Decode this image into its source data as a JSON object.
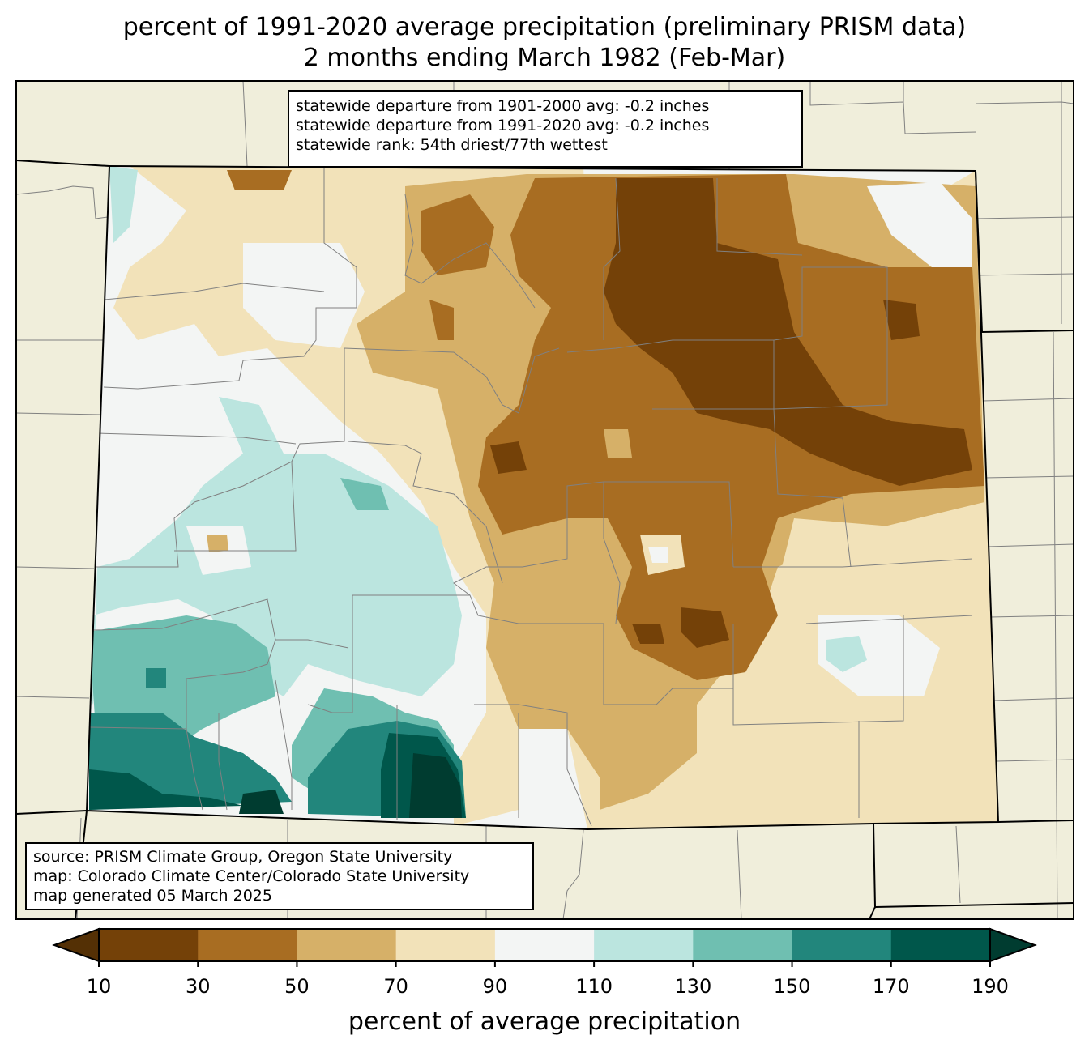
{
  "title": {
    "line1": "percent of 1991-2020 average precipitation (preliminary PRISM data)",
    "line2": "2 months ending March 1982 (Feb-Mar)"
  },
  "stats": {
    "line1": "statewide departure from 1901-2000 avg: -0.2 inches",
    "line2": "statewide departure from 1991-2020 avg: -0.2 inches",
    "line3": "statewide rank: 54th driest/77th wettest"
  },
  "source": {
    "line1": "source: PRISM Climate Group, Oregon State University",
    "line2": "map: Colorado Climate Center/Colorado State University",
    "line3": "map generated 05 March 2025"
  },
  "colorbar": {
    "label": "percent of average precipitation",
    "ticks": [
      "10",
      "30",
      "50",
      "70",
      "90",
      "110",
      "130",
      "150",
      "170",
      "190"
    ],
    "colors": {
      "under": "#543005",
      "bins": [
        "#744108",
        "#a86d22",
        "#d6b068",
        "#f2e2b9",
        "#f3f5f4",
        "#bbe5df",
        "#6fbfb1",
        "#22867c",
        "#00574b"
      ],
      "over": "#003c30"
    }
  },
  "map_colors": {
    "land": "#f0eedb",
    "state_border": "#000000",
    "county_border": "#808080"
  }
}
